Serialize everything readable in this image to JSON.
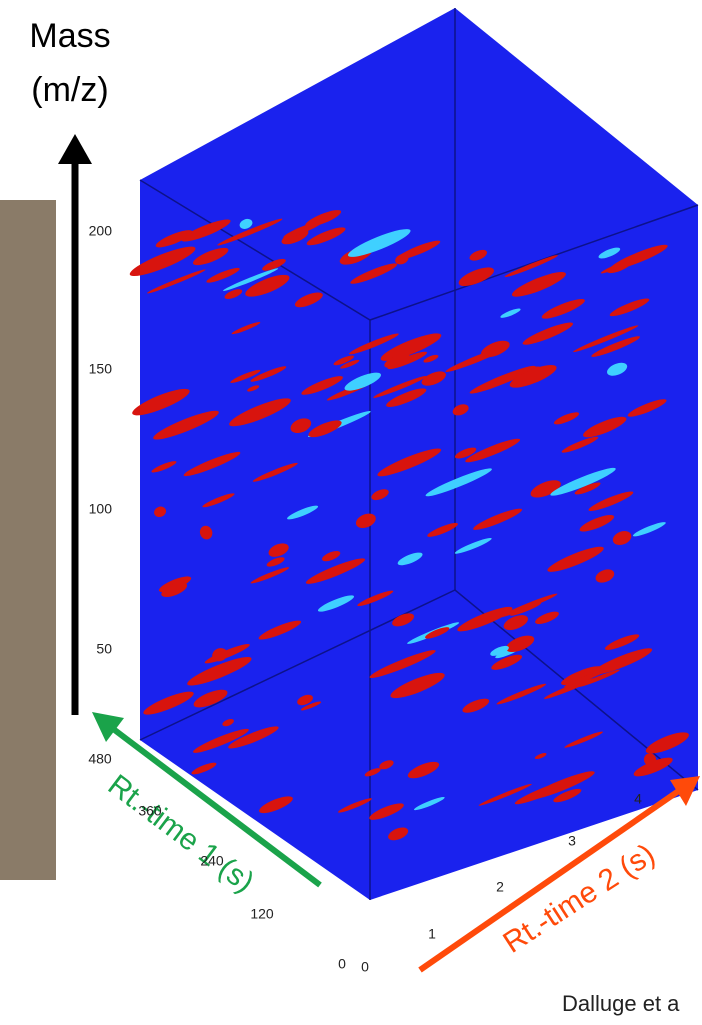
{
  "axis_labels": {
    "mass": [
      "Mass",
      "(m/z)"
    ],
    "rt1": "Rt.-time 1 (s)",
    "rt2": "Rt.-time 2 (s)"
  },
  "mass_ticks": [
    200,
    150,
    100,
    50
  ],
  "rt1_ticks": [
    480,
    360,
    240,
    120,
    0
  ],
  "rt2_ticks": [
    0,
    1,
    2,
    3,
    4
  ],
  "credit": "Dalluge et a"
}
